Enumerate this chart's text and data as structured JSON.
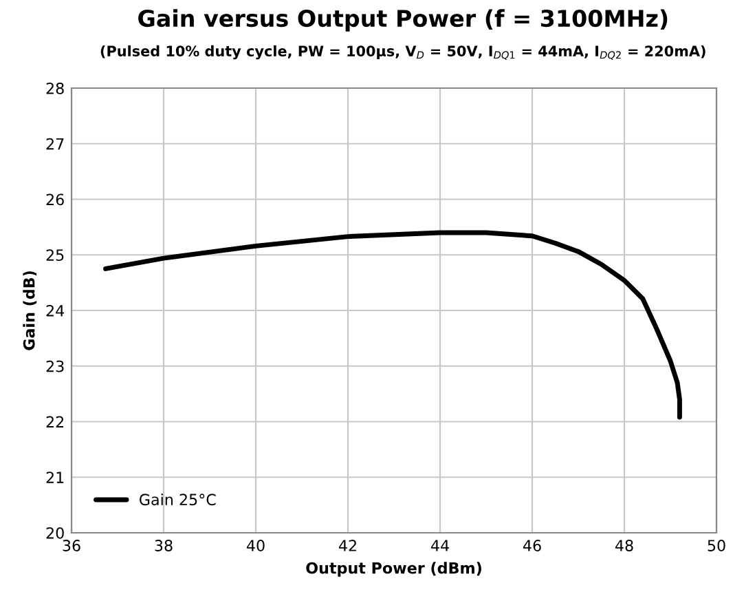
{
  "chart_data": {
    "type": "line",
    "title": "Gain versus Output Power (f = 3100MHz)",
    "subtitle": "(Pulsed 10% duty cycle, PW = 100μs, V$_{D}$ = 50V, I$_{DQ1}$ = 44mA, I$_{DQ2}$ = 220mA)",
    "xlabel": "Output Power (dBm)",
    "ylabel": "Gain (dB)",
    "x": [
      36.74,
      38,
      40,
      42,
      44,
      45,
      46,
      46.5,
      47,
      47.5,
      48,
      48.4,
      48.7,
      49,
      49.15,
      49.2,
      49.2
    ],
    "series": [
      {
        "name": "Gain 25°C",
        "color": "#000000",
        "values": [
          24.75,
          24.94,
          25.16,
          25.33,
          25.4,
          25.4,
          25.34,
          25.21,
          25.06,
          24.83,
          24.54,
          24.21,
          23.67,
          23.09,
          22.7,
          22.4,
          22.08
        ]
      }
    ],
    "xlim": [
      36,
      50
    ],
    "xticks": [
      36,
      38,
      40,
      42,
      44,
      46,
      48,
      50
    ],
    "ylim": [
      20,
      28
    ],
    "yticks": [
      20,
      21,
      22,
      23,
      24,
      25,
      26,
      27,
      28
    ],
    "grid": true,
    "legend": "bottom left",
    "line_style": "solid",
    "marker": "none"
  }
}
